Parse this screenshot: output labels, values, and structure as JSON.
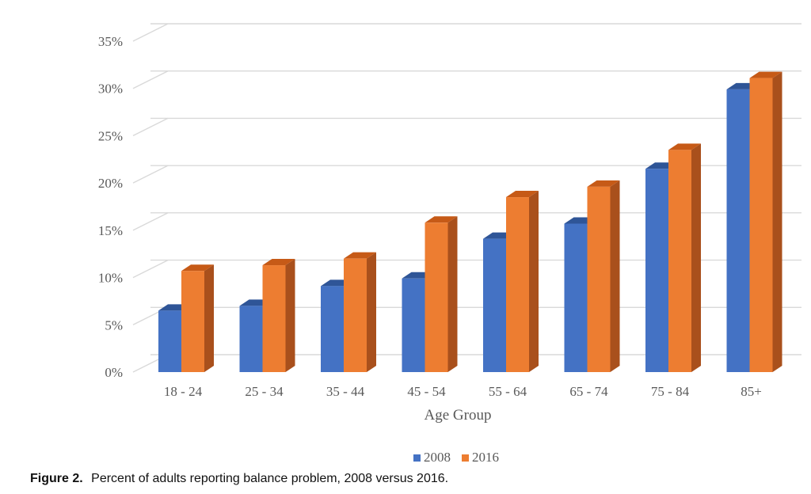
{
  "colors": {
    "series_2008": "#4472c4",
    "series_2008_top": "#2f5597",
    "series_2008_side": "#2e4f8e",
    "series_2016": "#ed7d31",
    "series_2016_top": "#c65a17",
    "series_2016_side": "#a9501c",
    "grid": "#d9d9d9",
    "text": "#595959"
  },
  "chart_data": {
    "type": "bar",
    "title": "",
    "xlabel": "Age Group",
    "ylabel": "",
    "ylim": [
      0,
      35
    ],
    "yticks": [
      0,
      5,
      10,
      15,
      20,
      25,
      30,
      35
    ],
    "ytick_labels": [
      "0%",
      "5%",
      "10%",
      "15%",
      "20%",
      "25%",
      "30%",
      "35%"
    ],
    "categories": [
      "18 - 24",
      "25 - 34",
      "35 - 44",
      "45 - 54",
      "55 - 64",
      "65 - 74",
      "75 - 84",
      "85+"
    ],
    "series": [
      {
        "name": "2008",
        "values": [
          6.5,
          7.0,
          9.1,
          9.9,
          14.1,
          15.7,
          21.5,
          29.9
        ]
      },
      {
        "name": "2016",
        "values": [
          10.7,
          11.3,
          12.0,
          15.8,
          18.5,
          19.6,
          23.5,
          31.1
        ]
      }
    ],
    "legend_position": "bottom",
    "grid": true
  },
  "caption": {
    "label": "Figure 2.",
    "text": "Percent of adults reporting balance problem, 2008 versus 2016."
  }
}
